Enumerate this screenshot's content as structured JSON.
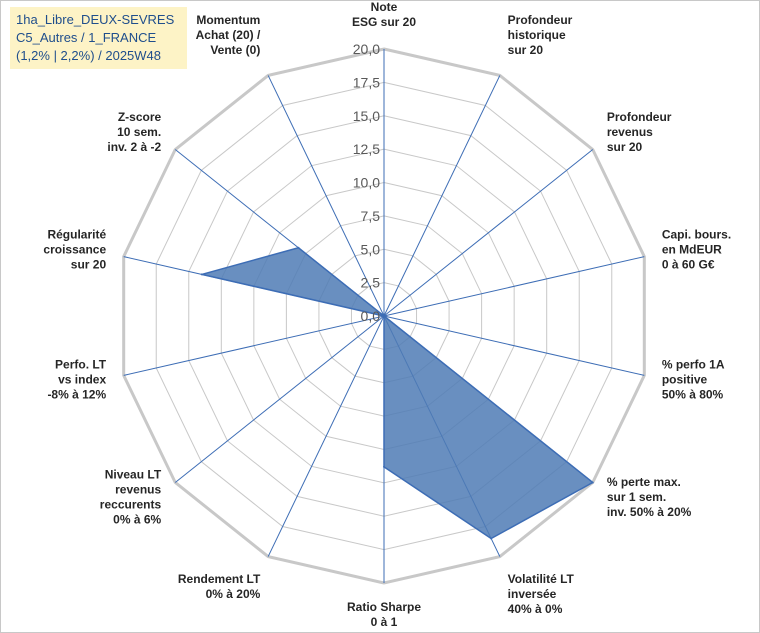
{
  "title_lines": [
    "1ha_Libre_DEUX-SEVRES",
    "C5_Autres / 1_FRANCE",
    "(1,2% | 2,2%) / 2025W48"
  ],
  "chart_data": {
    "type": "radar",
    "r_max": 20,
    "r_ticks": [
      0,
      2.5,
      5,
      7.5,
      10,
      12.5,
      15,
      17.5,
      20
    ],
    "r_tick_labels": [
      "0,0",
      "2,5",
      "5,0",
      "7,5",
      "10,0",
      "12,5",
      "15,0",
      "17,5",
      "20,0"
    ],
    "axes": [
      {
        "label": [
          "Note",
          "ESG sur 20"
        ],
        "value": 0
      },
      {
        "label": [
          "Profondeur",
          "historique",
          "sur 20"
        ],
        "value": 0
      },
      {
        "label": [
          "Profondeur",
          "revenus",
          "sur 20"
        ],
        "value": 0
      },
      {
        "label": [
          "Capi. bours.",
          "en MdEUR",
          "0 à 60 G€"
        ],
        "value": 0
      },
      {
        "label": [
          "% perfo 1A",
          "positive",
          "50% à 80%"
        ],
        "value": 0
      },
      {
        "label": [
          "% perte max.",
          "sur 1 sem.",
          "inv. 50% à 20%"
        ],
        "value": 20
      },
      {
        "label": [
          "Volatilité LT",
          "inversée",
          "40% à 0%"
        ],
        "value": 18.5
      },
      {
        "label": [
          "Ratio Sharpe",
          "0 à 1"
        ],
        "value": 11.3
      },
      {
        "label": [
          "Rendement LT",
          "0% à 20%"
        ],
        "value": 0
      },
      {
        "label": [
          "Niveau LT",
          "revenus",
          "reccurents",
          "0% à 6%"
        ],
        "value": 0
      },
      {
        "label": [
          "Perfo. LT",
          "vs index",
          "-8% à 12%"
        ],
        "value": 0
      },
      {
        "label": [
          "Régularité",
          "croissance",
          "sur 20"
        ],
        "value": 14
      },
      {
        "label": [
          "Z-score",
          "10 sem.",
          "inv. 2 à -2"
        ],
        "value": 8.2
      },
      {
        "label": [
          "Momentum",
          "Achat (20) /",
          "Vente (0)"
        ],
        "value": 0
      }
    ],
    "series_fill": "#4f7bb5",
    "series_line": "#3d6db5",
    "grid_color": "#c8c8c8",
    "spoke_color": "#3d6db5"
  }
}
